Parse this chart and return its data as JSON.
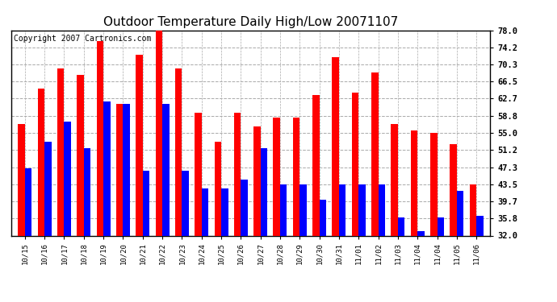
{
  "title": "Outdoor Temperature Daily High/Low 20071107",
  "copyright": "Copyright 2007 Cartronics.com",
  "dates": [
    "10/15",
    "10/16",
    "10/17",
    "10/18",
    "10/19",
    "10/20",
    "10/21",
    "10/22",
    "10/23",
    "10/24",
    "10/25",
    "10/26",
    "10/27",
    "10/28",
    "10/29",
    "10/30",
    "10/31",
    "11/01",
    "11/02",
    "11/03",
    "11/04",
    "11/04",
    "11/05",
    "11/06"
  ],
  "highs": [
    57.0,
    65.0,
    69.5,
    68.0,
    75.5,
    61.5,
    72.5,
    78.5,
    69.5,
    59.5,
    53.0,
    59.5,
    56.5,
    58.5,
    58.5,
    63.5,
    72.0,
    64.0,
    68.5,
    57.0,
    55.5,
    55.0,
    52.5,
    43.5
  ],
  "lows": [
    47.0,
    53.0,
    57.5,
    51.5,
    62.0,
    61.5,
    46.5,
    61.5,
    46.5,
    42.5,
    42.5,
    44.5,
    51.5,
    43.5,
    43.5,
    40.0,
    43.5,
    43.5,
    43.5,
    36.0,
    33.0,
    36.0,
    42.0,
    36.5
  ],
  "bar_color_high": "#ff0000",
  "bar_color_low": "#0000ff",
  "background_color": "#ffffff",
  "plot_bg_color": "#ffffff",
  "grid_color": "#aaaaaa",
  "yticks": [
    32.0,
    35.8,
    39.7,
    43.5,
    47.3,
    51.2,
    55.0,
    58.8,
    62.7,
    66.5,
    70.3,
    74.2,
    78.0
  ],
  "ymin": 32.0,
  "ymax": 78.0,
  "title_fontsize": 11,
  "copyright_fontsize": 7
}
